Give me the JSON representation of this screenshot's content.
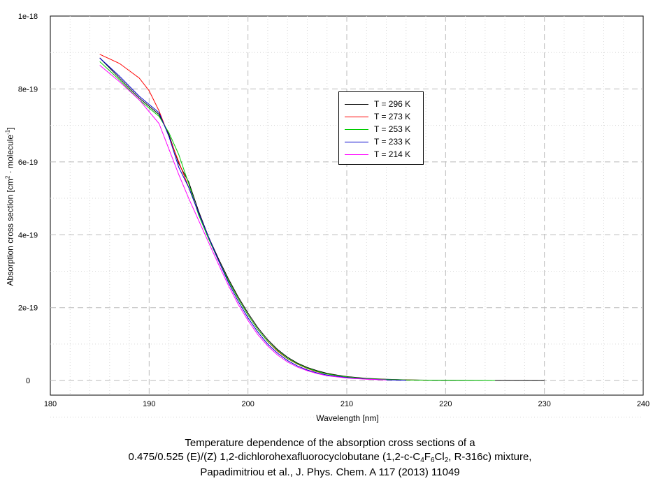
{
  "chart_data": {
    "type": "line",
    "xlabel": "Wavelength [nm]",
    "ylabel_parts": [
      "Absorption cross section [cm",
      "2",
      " · molecule",
      "-1",
      "]"
    ],
    "xlim": [
      180,
      240
    ],
    "ylim": [
      -4e-20,
      1e-18
    ],
    "x_ticks": [
      180,
      190,
      200,
      210,
      220,
      230,
      240
    ],
    "y_ticks": [
      0,
      2e-19,
      4e-19,
      6e-19,
      8e-19,
      1e-18
    ],
    "y_tick_labels": [
      "0",
      "2e-19",
      "4e-19",
      "6e-19",
      "8e-19",
      "1e-18"
    ],
    "grid": true,
    "legend_position": "upper-center-right",
    "series": [
      {
        "name": "T = 296 K",
        "color": "#000000",
        "x": [
          185,
          187,
          189,
          191,
          192,
          193,
          194,
          195,
          196,
          197,
          198,
          199,
          200,
          201,
          202,
          203,
          204,
          205,
          206,
          207,
          208,
          209,
          210,
          212,
          214,
          216,
          218,
          220,
          222,
          225,
          230
        ],
        "y": [
          8.85e-19,
          8.3e-19,
          7.75e-19,
          7.3e-19,
          6.75e-19,
          5.95e-19,
          5.45e-19,
          4.65e-19,
          3.95e-19,
          3.35e-19,
          2.8e-19,
          2.3e-19,
          1.85e-19,
          1.45e-19,
          1.12e-19,
          8.5e-20,
          6.4e-20,
          4.8e-20,
          3.6e-20,
          2.7e-20,
          2e-20,
          1.5e-20,
          1.1e-20,
          6e-21,
          3.5e-21,
          2e-21,
          1.2e-21,
          8e-22,
          5e-22,
          3e-22,
          1e-22
        ]
      },
      {
        "name": "T = 273 K",
        "color": "#ff0000",
        "x": [
          185,
          187,
          189,
          190,
          191,
          192,
          193,
          194,
          195,
          196,
          197,
          198,
          199,
          200,
          201,
          202,
          203,
          204,
          205,
          206,
          207,
          208,
          210,
          212,
          214,
          216,
          218
        ],
        "y": [
          8.95e-19,
          8.7e-19,
          8.3e-19,
          7.95e-19,
          7.4e-19,
          6.7e-19,
          6e-19,
          5.3e-19,
          4.6e-19,
          3.95e-19,
          3.3e-19,
          2.75e-19,
          2.25e-19,
          1.8e-19,
          1.4e-19,
          1.07e-19,
          8e-20,
          6e-20,
          4.5e-20,
          3.3e-20,
          2.4e-20,
          1.8e-20,
          1e-20,
          5e-21,
          3e-21,
          1.5e-21,
          1e-21
        ]
      },
      {
        "name": "T = 253 K",
        "color": "#00cc00",
        "x": [
          185,
          187,
          189,
          191,
          192,
          193,
          194,
          195,
          196,
          197,
          198,
          199,
          200,
          201,
          202,
          203,
          204,
          205,
          206,
          207,
          208,
          210,
          212,
          214,
          216,
          218,
          220,
          222,
          225
        ],
        "y": [
          8.75e-19,
          8.25e-19,
          7.7e-19,
          7.25e-19,
          6.8e-19,
          6.2e-19,
          5.4e-19,
          4.55e-19,
          3.9e-19,
          3.3e-19,
          2.75e-19,
          2.25e-19,
          1.8e-19,
          1.4e-19,
          1.08e-19,
          8.2e-20,
          6.1e-20,
          4.6e-20,
          3.4e-20,
          2.5e-20,
          1.8e-20,
          1e-20,
          5e-21,
          3e-21,
          1.5e-21,
          1e-21,
          6e-22,
          4e-22,
          2e-22
        ]
      },
      {
        "name": "T = 233 K",
        "color": "#0000cc",
        "x": [
          185,
          187,
          189,
          191,
          192,
          193,
          194,
          195,
          196,
          197,
          198,
          199,
          200,
          201,
          202,
          203,
          204,
          205,
          206,
          207,
          208,
          210,
          212,
          214,
          216
        ],
        "y": [
          8.85e-19,
          8.35e-19,
          7.8e-19,
          7.35e-19,
          6.7e-19,
          5.85e-19,
          5.3e-19,
          4.6e-19,
          3.95e-19,
          3.3e-19,
          2.7e-19,
          2.18e-19,
          1.72e-19,
          1.33e-19,
          1e-19,
          7.5e-20,
          5.5e-20,
          4e-20,
          2.9e-20,
          2.1e-20,
          1.5e-20,
          8e-21,
          4e-21,
          2e-21,
          1e-21
        ]
      },
      {
        "name": "T = 214 K",
        "color": "#ff00ff",
        "x": [
          185,
          187,
          189,
          191,
          192,
          193,
          194,
          195,
          196,
          197,
          198,
          199,
          200,
          201,
          202,
          203,
          204,
          205,
          206,
          207,
          208,
          210,
          212,
          214
        ],
        "y": [
          8.65e-19,
          8.2e-19,
          7.7e-19,
          7.05e-19,
          6.35e-19,
          5.65e-19,
          5e-19,
          4.4e-19,
          3.8e-19,
          3.2e-19,
          2.62e-19,
          2.1e-19,
          1.65e-19,
          1.26e-19,
          9.5e-20,
          7e-20,
          5.1e-20,
          3.7e-20,
          2.7e-20,
          1.9e-20,
          1.3e-20,
          7e-21,
          3.5e-21,
          1.8e-21
        ]
      }
    ],
    "caption": {
      "line1": "Temperature dependence of the absorption cross sections of a",
      "line2_a": "0.475/0.525 (E)/(Z) 1,2-dichlorohexafluorocyclobutane (1,2-c-C",
      "line2_sub1": "4",
      "line2_b": "F",
      "line2_sub2": "6",
      "line2_c": "Cl",
      "line2_sub3": "2",
      "line2_d": ", R-316c) mixture,",
      "line3": "Papadimitriou et al., J. Phys. Chem. A 117 (2013) 11049"
    }
  }
}
